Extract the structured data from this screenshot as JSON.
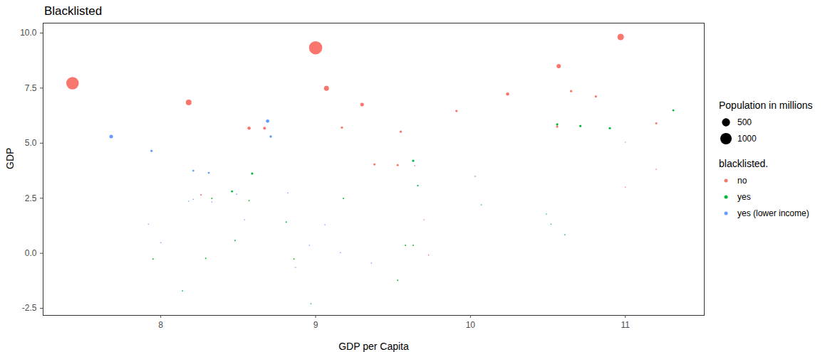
{
  "chart_data": {
    "type": "scatter",
    "title": "Blacklisted",
    "x_label": "GDP per Capita",
    "y_label": "GDP",
    "xlim": [
      7.24,
      11.51
    ],
    "ylim": [
      -2.82,
      10.45
    ],
    "xticks": [
      8,
      9,
      10,
      11
    ],
    "yticks": [
      -2.5,
      {
        "value": 0,
        "label": "0.0"
      },
      2.5,
      {
        "value": 5,
        "label": "5.0"
      },
      7.5,
      {
        "value": 10,
        "label": "10.0"
      }
    ],
    "grid": false,
    "legend": "right",
    "legend_title": "blacklisted.",
    "size_title": "Population in millions",
    "size_legend_values": [
      500,
      1000
    ],
    "series": [
      {
        "name": "no",
        "color": "#F8766D",
        "x": [
          7.43,
          9.0,
          10.97,
          8.18,
          9.07,
          10.57,
          9.3,
          8.57,
          8.67,
          9.17,
          9.55,
          9.38,
          9.53,
          9.64,
          9.91,
          10.24,
          10.65,
          10.81,
          10.56,
          11.2,
          11.0,
          11.2,
          11.0,
          8.26,
          9.7,
          9.73
        ],
        "y": [
          7.72,
          9.33,
          9.82,
          6.85,
          7.49,
          8.5,
          6.75,
          5.68,
          5.68,
          5.71,
          5.52,
          4.03,
          4.0,
          3.98,
          6.46,
          7.23,
          7.36,
          7.12,
          5.75,
          5.9,
          5.04,
          3.81,
          3.0,
          2.65,
          1.52,
          -0.08
        ],
        "population": [
          1200,
          1350,
          320,
          250,
          190,
          140,
          100,
          80,
          60,
          40,
          40,
          35,
          35,
          10,
          45,
          80,
          40,
          40,
          40,
          35,
          10,
          10,
          10,
          20,
          10,
          10
        ]
      },
      {
        "name": "yes",
        "color": "#00BA38",
        "x": [
          11.31,
          10.56,
          10.71,
          10.9,
          9.63,
          9.66,
          8.59,
          8.46,
          8.57,
          9.18,
          8.33,
          10.03,
          10.07,
          10.49,
          10.52,
          10.61,
          8.81,
          8.48,
          7.95,
          8.29,
          8.86,
          9.58,
          9.63,
          9.53,
          8.14,
          8.97
        ],
        "y": [
          6.49,
          5.85,
          5.78,
          5.68,
          4.2,
          3.07,
          3.62,
          2.81,
          2.39,
          2.49,
          2.49,
          3.49,
          2.2,
          1.78,
          1.32,
          0.84,
          1.42,
          0.58,
          -0.26,
          -0.23,
          -0.26,
          0.36,
          0.36,
          -1.23,
          -1.71,
          -2.29
        ],
        "population": [
          30,
          40,
          40,
          40,
          40,
          20,
          40,
          30,
          15,
          15,
          15,
          10,
          10,
          10,
          10,
          10,
          15,
          15,
          15,
          15,
          15,
          15,
          15,
          15,
          15,
          10
        ]
      },
      {
        "name": "yes (lower income)",
        "color": "#619CFF",
        "x": [
          7.68,
          8.69,
          8.71,
          7.94,
          8.21,
          8.31,
          8.18,
          8.21,
          8.33,
          8.49,
          8.82,
          8.54,
          7.92,
          8.0,
          9.06,
          8.96,
          9.16,
          8.87,
          9.36
        ],
        "y": [
          5.3,
          6.0,
          5.3,
          4.65,
          3.75,
          3.65,
          2.36,
          2.45,
          2.33,
          2.68,
          2.74,
          1.52,
          1.32,
          0.48,
          1.29,
          0.36,
          0.03,
          -0.64,
          -0.45
        ],
        "population": [
          100,
          90,
          50,
          40,
          30,
          30,
          10,
          10,
          10,
          10,
          10,
          10,
          10,
          10,
          10,
          10,
          10,
          10,
          10
        ]
      }
    ]
  }
}
